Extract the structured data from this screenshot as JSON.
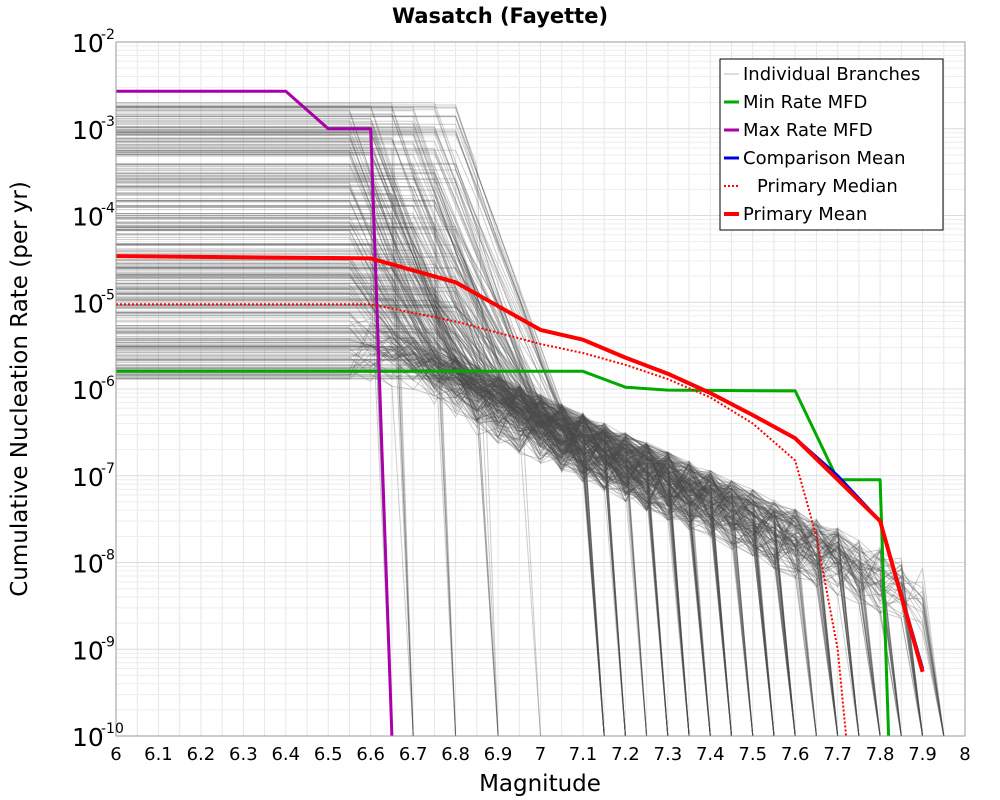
{
  "chart_data": {
    "type": "line",
    "title": "Wasatch (Fayette)",
    "xlabel": "Magnitude",
    "ylabel": "Cumulative Nucleation Rate (per yr)",
    "xlim": [
      6,
      8
    ],
    "ylim": [
      1e-10,
      0.01
    ],
    "yscale": "log",
    "grid": true,
    "legend_position": "top-right",
    "x_ticks": [
      "6",
      "6.1",
      "6.2",
      "6.3",
      "6.4",
      "6.5",
      "6.6",
      "6.7",
      "6.8",
      "6.9",
      "7",
      "7.1",
      "7.2",
      "7.3",
      "7.4",
      "7.5",
      "7.6",
      "7.7",
      "7.8",
      "7.9",
      "8"
    ],
    "y_ticks": [
      {
        "base": "10",
        "exp": "-10",
        "value": 1e-10
      },
      {
        "base": "10",
        "exp": "-9",
        "value": 1e-09
      },
      {
        "base": "10",
        "exp": "-8",
        "value": 1e-08
      },
      {
        "base": "10",
        "exp": "-7",
        "value": 1e-07
      },
      {
        "base": "10",
        "exp": "-6",
        "value": 1e-06
      },
      {
        "base": "10",
        "exp": "-5",
        "value": 1e-05
      },
      {
        "base": "10",
        "exp": "-4",
        "value": 0.0001
      },
      {
        "base": "10",
        "exp": "-3",
        "value": 0.001
      },
      {
        "base": "10",
        "exp": "-2",
        "value": 0.01
      }
    ],
    "series": [
      {
        "name": "Individual Branches",
        "color": "#4d4d4d",
        "style": "thin-band",
        "note": "hundreds of logic-tree branch MFDs"
      },
      {
        "name": "Min Rate MFD",
        "color": "#00aa00",
        "style": "solid",
        "x": [
          6.0,
          7.1,
          7.2,
          7.3,
          7.6,
          7.7,
          7.8,
          7.82
        ],
        "y": [
          1.6e-06,
          1.6e-06,
          1.05e-06,
          9.7e-07,
          9.5e-07,
          9e-08,
          9e-08,
          1e-10
        ]
      },
      {
        "name": "Max Rate MFD",
        "color": "#aa00aa",
        "style": "solid",
        "x": [
          6.0,
          6.4,
          6.5,
          6.6,
          6.65
        ],
        "y": [
          0.0027,
          0.0027,
          0.001,
          0.001,
          1e-10
        ]
      },
      {
        "name": "Comparison Mean",
        "color": "#0000dd",
        "style": "solid",
        "x": [
          6.0,
          6.6,
          6.8,
          7.0,
          7.1,
          7.2,
          7.3,
          7.4,
          7.5,
          7.6,
          7.7,
          7.8,
          7.9
        ],
        "y": [
          3.4e-05,
          3.2e-05,
          1.7e-05,
          4.8e-06,
          3.7e-06,
          2.3e-06,
          1.5e-06,
          9e-07,
          5e-07,
          2.7e-07,
          1e-07,
          3e-08,
          6e-10
        ]
      },
      {
        "name": "Primary Median",
        "color": "#ff0000",
        "style": "dotted",
        "x": [
          6.0,
          6.6,
          6.8,
          7.0,
          7.1,
          7.2,
          7.3,
          7.4,
          7.5,
          7.6,
          7.65,
          7.7,
          7.72
        ],
        "y": [
          9.5e-06,
          9.5e-06,
          6e-06,
          3.3e-06,
          2.6e-06,
          1.9e-06,
          1.3e-06,
          8e-07,
          4e-07,
          1.5e-07,
          2e-08,
          1e-09,
          1e-10
        ]
      },
      {
        "name": "Primary Mean",
        "color": "#ff0000",
        "style": "thick",
        "x": [
          6.0,
          6.6,
          6.8,
          7.0,
          7.1,
          7.2,
          7.3,
          7.4,
          7.5,
          7.6,
          7.7,
          7.8,
          7.9
        ],
        "y": [
          3.4e-05,
          3.2e-05,
          1.7e-05,
          4.8e-06,
          3.7e-06,
          2.3e-06,
          1.5e-06,
          9e-07,
          5e-07,
          2.7e-07,
          9e-08,
          3e-08,
          5.5e-10
        ]
      }
    ]
  }
}
